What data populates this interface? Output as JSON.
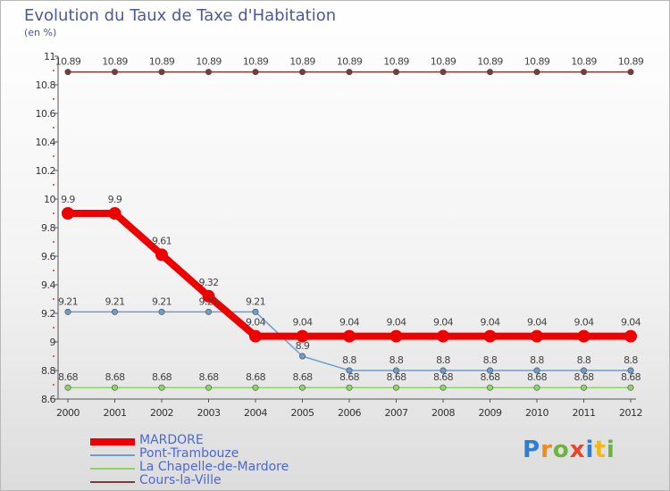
{
  "title": "Evolution du Taux de Taxe d'Habitation",
  "unit_note": "(en %)",
  "logo": {
    "text": "Proxiti",
    "letters": [
      {
        "ch": "P",
        "color": "#2e7fd4"
      },
      {
        "ch": "r",
        "color": "#f08a1c"
      },
      {
        "ch": "o",
        "color": "#6cb33f"
      },
      {
        "ch": "x",
        "color": "#e8462a"
      },
      {
        "ch": "i",
        "color": "#2e7fd4"
      },
      {
        "ch": "t",
        "color": "#f0b81c"
      },
      {
        "ch": "i",
        "color": "#6cb33f"
      }
    ]
  },
  "chart_data": {
    "type": "line",
    "title": "Evolution du Taux de Taxe d'Habitation",
    "ylabel": "(en %)",
    "xlabel": "",
    "x": [
      "2000",
      "2001",
      "2002",
      "2003",
      "2004",
      "2005",
      "2006",
      "2007",
      "2008",
      "2009",
      "2010",
      "2011",
      "2012"
    ],
    "ylim": [
      8.6,
      11
    ],
    "yticks": [
      8.6,
      8.8,
      9,
      9.2,
      9.4,
      9.6,
      9.8,
      10,
      10.2,
      10.4,
      10.6,
      10.8,
      11
    ],
    "ytick_labels": [
      "8.6",
      "8.8",
      "9",
      "9.2",
      "9.4",
      "9.6",
      "9.8",
      "10",
      "10.2",
      "10.4",
      "10.6",
      "10.8",
      "11"
    ],
    "grid": false,
    "legend_position": "bottom-left",
    "series": [
      {
        "name": "MARDORE",
        "color": "#ee0000",
        "emphasis": true,
        "values": [
          9.9,
          9.9,
          9.61,
          9.32,
          9.04,
          9.04,
          9.04,
          9.04,
          9.04,
          9.04,
          9.04,
          9.04,
          9.04
        ],
        "labels": [
          "9.9",
          "9.9",
          "9.61",
          "9.32",
          "9.04",
          "9.04",
          "9.04",
          "9.04",
          "9.04",
          "9.04",
          "9.04",
          "9.04",
          "9.04"
        ]
      },
      {
        "name": "Pont-Trambouze",
        "color": "#6a9ed0",
        "emphasis": false,
        "values": [
          9.21,
          9.21,
          9.21,
          9.21,
          9.21,
          8.9,
          8.8,
          8.8,
          8.8,
          8.8,
          8.8,
          8.8,
          8.8
        ],
        "labels": [
          "9.21",
          "9.21",
          "9.21",
          "9.21",
          "9.21",
          "8.9",
          "8.8",
          "8.8",
          "8.8",
          "8.8",
          "8.8",
          "8.8",
          "8.8"
        ]
      },
      {
        "name": "La Chapelle-de-Mardore",
        "color": "#8fd16a",
        "emphasis": false,
        "values": [
          8.68,
          8.68,
          8.68,
          8.68,
          8.68,
          8.68,
          8.68,
          8.68,
          8.68,
          8.68,
          8.68,
          8.68,
          8.68
        ],
        "labels": [
          "8.68",
          "8.68",
          "8.68",
          "8.68",
          "8.68",
          "8.68",
          "8.68",
          "8.68",
          "8.68",
          "8.68",
          "8.68",
          "8.68",
          "8.68"
        ]
      },
      {
        "name": "Cours-la-Ville",
        "color": "#7a3b3b",
        "emphasis": false,
        "values": [
          10.89,
          10.89,
          10.89,
          10.89,
          10.89,
          10.89,
          10.89,
          10.89,
          10.89,
          10.89,
          10.89,
          10.89,
          10.89
        ],
        "labels": [
          "10.89",
          "10.89",
          "10.89",
          "10.89",
          "10.89",
          "10.89",
          "10.89",
          "10.89",
          "10.89",
          "10.89",
          "10.89",
          "10.89",
          "10.89"
        ]
      }
    ]
  }
}
